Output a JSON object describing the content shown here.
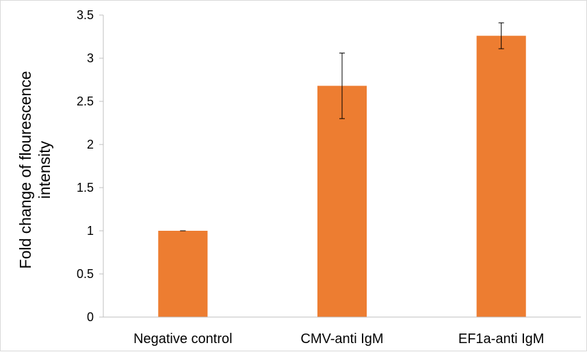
{
  "chart_data": {
    "type": "bar",
    "categories": [
      "Negative control",
      "CMV-anti IgM",
      "EF1a-anti IgM"
    ],
    "values": [
      1.0,
      2.68,
      3.26
    ],
    "error_bars": [
      {
        "low": 1.0,
        "high": 1.0
      },
      {
        "low": 2.3,
        "high": 3.06
      },
      {
        "low": 3.11,
        "high": 3.41
      }
    ],
    "title": "",
    "xlabel": "",
    "ylabel_lines": [
      "Fold change of flourescence",
      "intensity"
    ],
    "ylim": [
      0,
      3.5
    ],
    "yticks": [
      "0",
      "0.5",
      "1",
      "1.5",
      "2",
      "2.5",
      "3",
      "3.5"
    ],
    "grid": false,
    "legend": "none",
    "bar_color": "#ED7D31",
    "axis_color": "#bfbfbf"
  }
}
